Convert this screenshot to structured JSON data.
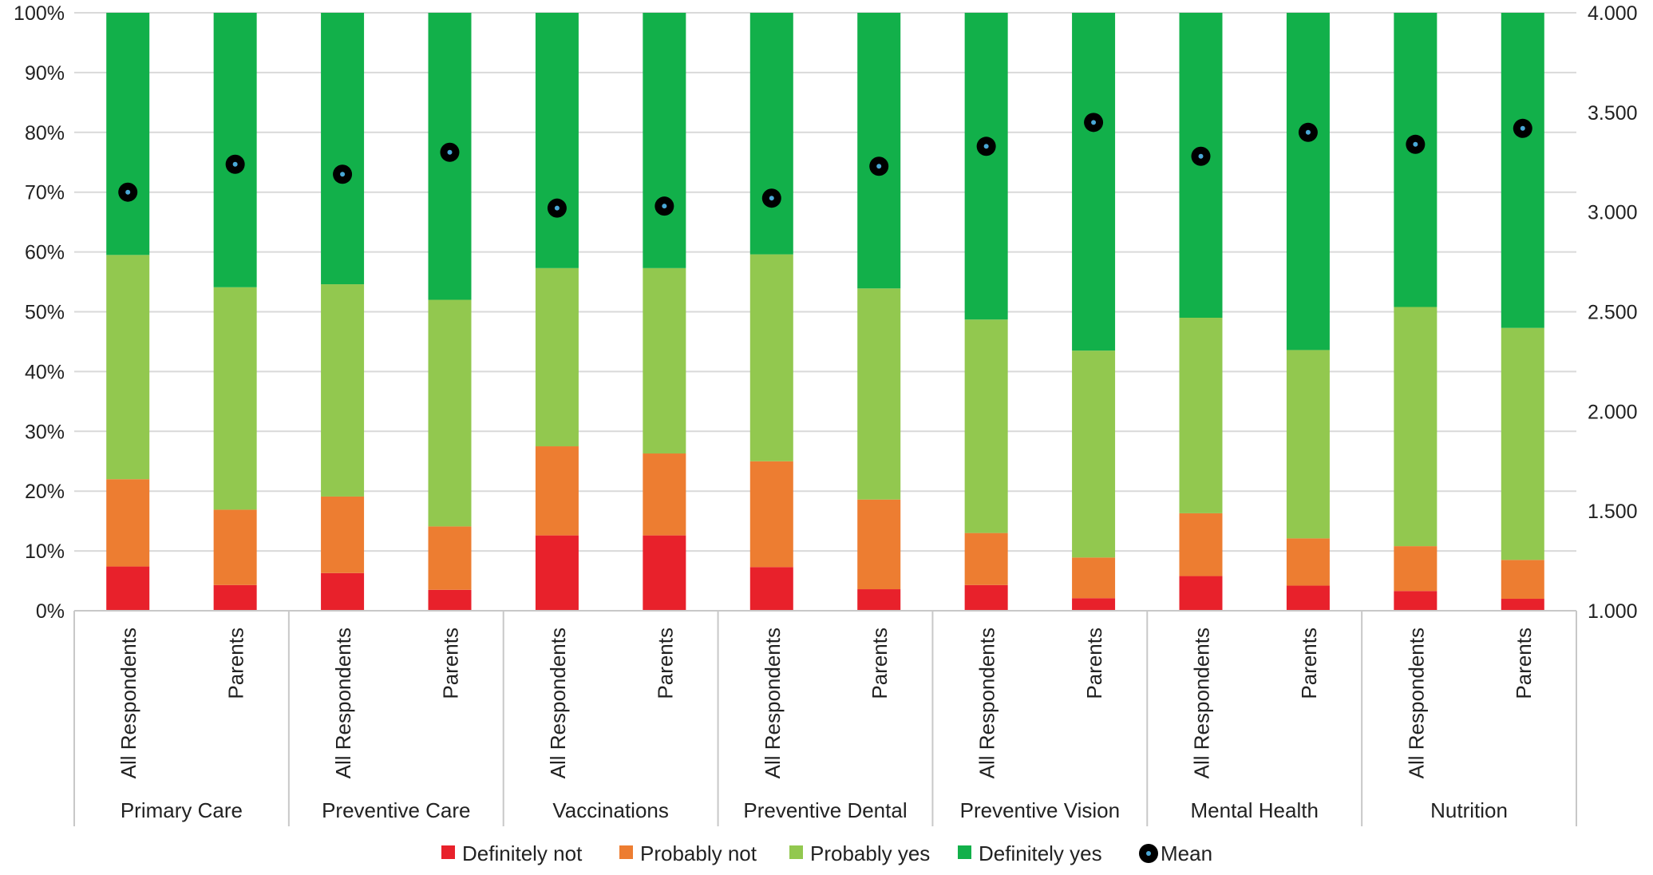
{
  "chart_data": {
    "type": "bar",
    "stacked": true,
    "groups": [
      "Primary Care",
      "Preventive Care",
      "Vaccinations",
      "Preventive Dental",
      "Preventive Vision",
      "Mental Health",
      "Nutrition"
    ],
    "subcategories": [
      "All Respondents",
      "Parents"
    ],
    "series": [
      {
        "name": "Definitely not",
        "color": "#e8212b",
        "values": [
          7.4,
          4.3,
          6.3,
          3.5,
          12.6,
          12.6,
          7.3,
          3.6,
          4.3,
          2.1,
          5.8,
          4.2,
          3.3,
          2.0
        ]
      },
      {
        "name": "Probably not",
        "color": "#ed7d31",
        "values": [
          14.6,
          12.6,
          12.8,
          10.6,
          14.9,
          13.7,
          17.7,
          15.0,
          8.7,
          6.8,
          10.5,
          7.9,
          7.5,
          6.5
        ]
      },
      {
        "name": "Probably yes",
        "color": "#92c84f",
        "values": [
          37.5,
          37.2,
          35.5,
          37.9,
          29.8,
          31.0,
          34.6,
          35.3,
          35.7,
          34.6,
          32.7,
          31.5,
          40.0,
          38.8
        ]
      },
      {
        "name": "Definitely yes",
        "color": "#12b04a",
        "values": [
          40.5,
          45.9,
          45.4,
          48.0,
          42.7,
          42.7,
          40.4,
          46.1,
          51.3,
          56.5,
          51.0,
          56.4,
          49.2,
          52.7
        ]
      }
    ],
    "mean": {
      "name": "Mean",
      "values": [
        3.1,
        3.24,
        3.19,
        3.3,
        3.02,
        3.03,
        3.07,
        3.23,
        3.33,
        3.45,
        3.28,
        3.4,
        3.34,
        3.42
      ]
    },
    "y_left": {
      "min": 0,
      "max": 100,
      "step": 10,
      "ticks": [
        "0%",
        "10%",
        "20%",
        "30%",
        "40%",
        "50%",
        "60%",
        "70%",
        "80%",
        "90%",
        "100%"
      ]
    },
    "y_right": {
      "min": 1.0,
      "max": 4.0,
      "step": 0.5,
      "ticks": [
        "1.000",
        "1.500",
        "2.000",
        "2.500",
        "3.000",
        "3.500",
        "4.000"
      ]
    },
    "legend": {
      "position": "bottom",
      "items": [
        {
          "label": "Definitely not",
          "color": "#e8212b",
          "kind": "box"
        },
        {
          "label": "Probably not",
          "color": "#ed7d31",
          "kind": "box"
        },
        {
          "label": "Probably yes",
          "color": "#92c84f",
          "kind": "box"
        },
        {
          "label": "Definitely yes",
          "color": "#12b04a",
          "kind": "box"
        },
        {
          "label": "Mean",
          "color": "#000000",
          "kind": "marker"
        }
      ]
    },
    "grid": true,
    "gridColor": "#d9d9d9",
    "markerColor": "#000000",
    "markerDotColor": "#4aa8d8"
  }
}
